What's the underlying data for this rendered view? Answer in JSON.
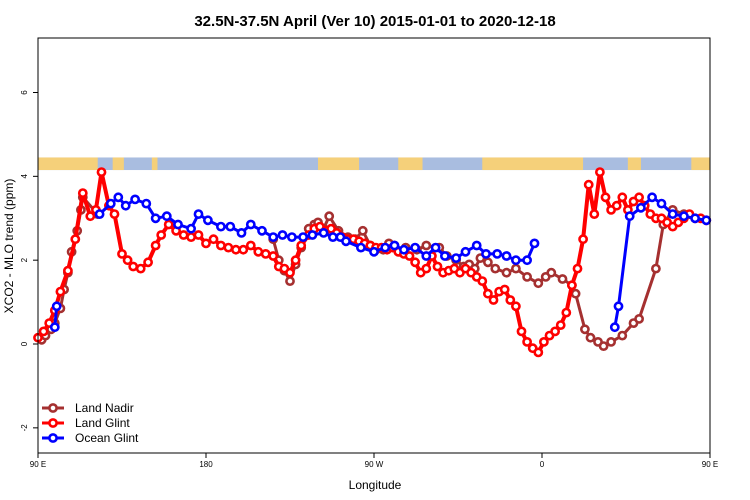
{
  "chart_data": {
    "type": "line",
    "title": "32.5N-37.5N April (Ver 10)   2015-01-01 to 2020-12-18",
    "xlabel": "Longitude",
    "ylabel": "XCO2 - MLO trend (ppm)",
    "xlim": [
      90,
      450
    ],
    "ylim": [
      -2.6,
      7.3
    ],
    "x_ticks": [
      {
        "value": 90,
        "label": "90 E"
      },
      {
        "value": 180,
        "label": "180"
      },
      {
        "value": 270,
        "label": "90 W"
      },
      {
        "value": 360,
        "label": "0"
      },
      {
        "value": 450,
        "label": "90 E"
      },
      {
        "value": 540,
        "label": "180"
      }
    ],
    "y_ticks": [
      -2,
      0,
      2,
      4,
      6
    ],
    "legend_position": "bottom-left",
    "land_mask": {
      "y_range": [
        4.15,
        4.45
      ],
      "land_color": "#f5d07a",
      "ocean_color": "#a9bde0",
      "land_segments": [
        [
          90,
          122
        ],
        [
          130,
          136
        ],
        [
          151,
          154
        ],
        [
          240,
          262
        ],
        [
          283,
          296
        ],
        [
          328,
          382
        ],
        [
          406,
          413
        ],
        [
          440,
          451
        ],
        [
          469,
          477
        ],
        [
          498,
          502
        ],
        [
          513,
          515
        ]
      ]
    },
    "series": [
      {
        "name": "Land Nadir",
        "color": "#a53030",
        "x": [
          92,
          94,
          97,
          99,
          102,
          104,
          106,
          108,
          111,
          113,
          114,
          122,
          216,
          219,
          222,
          225,
          228,
          231,
          235,
          238,
          240,
          243,
          246,
          251,
          256,
          260,
          264,
          268,
          271,
          275,
          278,
          281,
          284,
          287,
          293,
          298,
          305,
          309,
          314,
          318,
          321,
          324,
          327,
          331,
          335,
          341,
          346,
          352,
          358,
          362,
          365,
          371,
          376,
          378,
          383,
          386,
          390,
          393,
          397,
          403,
          409,
          412,
          421,
          425,
          430,
          436
        ],
        "y": [
          0.1,
          0.2,
          0.35,
          0.5,
          0.85,
          1.3,
          1.7,
          2.2,
          2.7,
          3.2,
          3.5,
          3.1,
          2.5,
          2.0,
          1.75,
          1.5,
          1.9,
          2.3,
          2.75,
          2.85,
          2.9,
          2.75,
          3.05,
          2.7,
          2.55,
          2.5,
          2.7,
          2.35,
          2.25,
          2.25,
          2.4,
          2.35,
          2.2,
          2.3,
          2.25,
          2.35,
          2.3,
          2.1,
          2.0,
          1.85,
          1.9,
          1.8,
          2.05,
          1.95,
          1.8,
          1.7,
          1.8,
          1.6,
          1.45,
          1.6,
          1.7,
          1.55,
          1.4,
          1.2,
          0.35,
          0.15,
          0.05,
          -0.05,
          0.05,
          0.2,
          0.5,
          0.6,
          1.8,
          2.85,
          3.2,
          3.1
        ]
      },
      {
        "name": "Land Glint",
        "color": "#ff0000",
        "x": [
          90,
          93,
          96,
          99,
          102,
          106,
          110,
          114,
          118,
          121,
          124,
          128,
          131,
          135,
          138,
          141,
          145,
          149,
          153,
          156,
          160,
          164,
          168,
          172,
          176,
          180,
          184,
          188,
          192,
          196,
          200,
          204,
          208,
          212,
          216,
          219,
          222,
          225,
          228,
          231,
          235,
          238,
          241,
          244,
          247,
          250,
          253,
          256,
          259,
          262,
          265,
          268,
          271,
          274,
          277,
          280,
          283,
          286,
          289,
          292,
          295,
          298,
          301,
          304,
          307,
          310,
          313,
          316,
          319,
          322,
          325,
          328,
          331,
          334,
          337,
          340,
          343,
          346,
          349,
          352,
          355,
          358,
          361,
          364,
          367,
          370,
          373,
          376,
          379,
          382,
          385,
          388,
          391,
          394,
          397,
          400,
          403,
          406,
          409,
          412,
          415,
          418,
          421,
          424,
          427,
          430,
          433,
          436,
          439,
          442,
          445,
          448
        ],
        "y": [
          0.15,
          0.3,
          0.5,
          0.8,
          1.25,
          1.75,
          2.5,
          3.6,
          3.05,
          3.2,
          4.1,
          3.3,
          3.1,
          2.15,
          2.0,
          1.85,
          1.8,
          1.95,
          2.35,
          2.6,
          2.85,
          2.7,
          2.6,
          2.55,
          2.6,
          2.4,
          2.5,
          2.35,
          2.3,
          2.25,
          2.25,
          2.35,
          2.2,
          2.15,
          2.1,
          1.85,
          1.8,
          1.7,
          2.0,
          2.35,
          2.6,
          2.75,
          2.8,
          2.7,
          2.75,
          2.65,
          2.55,
          2.5,
          2.5,
          2.45,
          2.4,
          2.35,
          2.3,
          2.3,
          2.25,
          2.3,
          2.2,
          2.15,
          2.1,
          1.95,
          1.7,
          1.8,
          2.1,
          1.85,
          1.7,
          1.75,
          1.8,
          1.7,
          1.8,
          1.7,
          1.6,
          1.5,
          1.2,
          1.05,
          1.25,
          1.3,
          1.05,
          0.9,
          0.3,
          0.05,
          -0.1,
          -0.2,
          0.05,
          0.2,
          0.3,
          0.45,
          0.75,
          1.4,
          1.8,
          2.5,
          3.8,
          3.1,
          4.1,
          3.5,
          3.2,
          3.3,
          3.5,
          3.2,
          3.4,
          3.5,
          3.3,
          3.1,
          3.0,
          3.0,
          2.9,
          2.8,
          2.9,
          3.0,
          3.1,
          3.0,
          3.0,
          2.95
        ],
        "_comment_unused": ""
      },
      {
        "name": "Ocean Glint",
        "color": "#0000ff",
        "x": [
          99,
          100,
          123,
          129,
          133,
          137,
          142,
          148,
          153,
          159,
          165,
          172,
          176,
          181,
          188,
          193,
          199,
          204,
          210,
          216,
          221,
          226,
          232,
          237,
          243,
          248,
          252,
          255,
          263,
          270,
          276,
          281,
          286,
          292,
          298,
          303,
          308,
          314,
          319,
          325,
          330,
          336,
          341,
          346,
          352,
          356,
          399,
          401,
          407,
          413,
          419,
          424,
          430,
          436,
          442,
          448
        ],
        "y": [
          0.4,
          0.9,
          3.1,
          3.35,
          3.5,
          3.3,
          3.45,
          3.35,
          3.0,
          3.05,
          2.85,
          2.75,
          3.1,
          2.95,
          2.8,
          2.8,
          2.65,
          2.85,
          2.7,
          2.55,
          2.6,
          2.55,
          2.55,
          2.6,
          2.65,
          2.55,
          2.55,
          2.45,
          2.3,
          2.2,
          2.3,
          2.35,
          2.25,
          2.3,
          2.1,
          2.3,
          2.1,
          2.05,
          2.2,
          2.35,
          2.15,
          2.15,
          2.1,
          2.0,
          2.0,
          2.4,
          0.4,
          0.9,
          3.05,
          3.25,
          3.5,
          3.35,
          3.1,
          3.05,
          3.0,
          2.95
        ]
      }
    ]
  }
}
